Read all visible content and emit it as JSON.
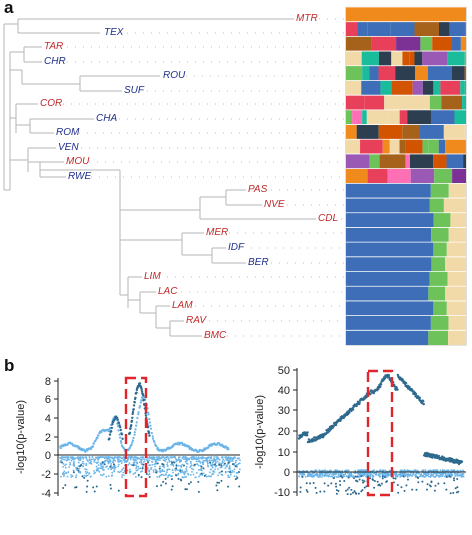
{
  "panel_a": {
    "label": "a",
    "taxa": [
      {
        "name": "MTR",
        "color": "#c0292b"
      },
      {
        "name": "TEX",
        "color": "#1f2f8c"
      },
      {
        "name": "TAR",
        "color": "#c0292b"
      },
      {
        "name": "CHR",
        "color": "#1f2f8c"
      },
      {
        "name": "ROU",
        "color": "#1f2f8c"
      },
      {
        "name": "SUF",
        "color": "#1f2f8c"
      },
      {
        "name": "COR",
        "color": "#c0292b"
      },
      {
        "name": "CHA",
        "color": "#1f2f8c"
      },
      {
        "name": "ROM",
        "color": "#1f2f8c"
      },
      {
        "name": "VEN",
        "color": "#1f2f8c"
      },
      {
        "name": "MOU",
        "color": "#c0292b"
      },
      {
        "name": "RWE",
        "color": "#1f2f8c"
      },
      {
        "name": "PAS",
        "color": "#c0292b"
      },
      {
        "name": "NVE",
        "color": "#c0292b"
      },
      {
        "name": "CDL",
        "color": "#c0292b"
      },
      {
        "name": "MER",
        "color": "#c0292b"
      },
      {
        "name": "IDF",
        "color": "#1f2f8c"
      },
      {
        "name": "BER",
        "color": "#1f2f8c"
      },
      {
        "name": "LIM",
        "color": "#c0292b"
      },
      {
        "name": "LAC",
        "color": "#c0292b"
      },
      {
        "name": "LAM",
        "color": "#c0292b"
      },
      {
        "name": "RAV",
        "color": "#c0292b"
      },
      {
        "name": "BMC",
        "color": "#c0292b"
      }
    ]
  },
  "panel_b": {
    "label": "b",
    "left_plot": {
      "ylabel": "-log10(p-value)",
      "yticks": [
        "8",
        "6",
        "4",
        "2",
        "0",
        "-2",
        "-4"
      ]
    },
    "right_plot": {
      "ylabel": "-log10(p-value)",
      "yticks": [
        "50",
        "40",
        "30",
        "20",
        "10",
        "0",
        "-10"
      ]
    }
  },
  "colors": {
    "dark_series": "#2e6a8e",
    "light_series": "#6ab4e8",
    "highlight_box": "#e0262a",
    "tree_line": "#b5b5b5",
    "admix_blue": "#3f6eb8",
    "admix_green": "#6dc25a",
    "admix_wheat": "#f2d9a8",
    "admix_orange": "#f08a1d"
  }
}
